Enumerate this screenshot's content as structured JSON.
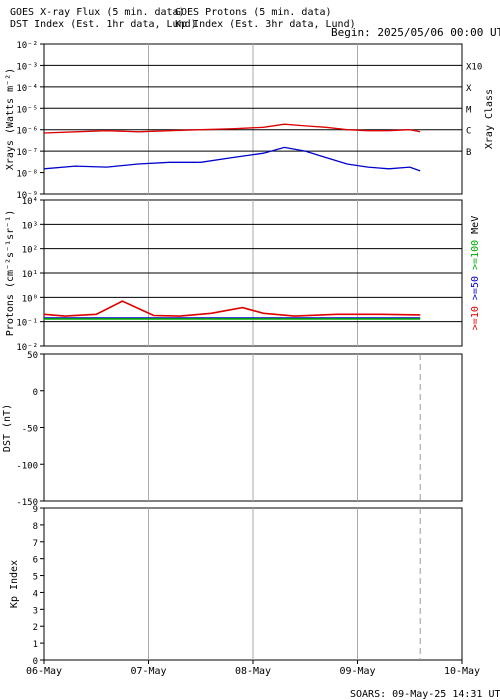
{
  "header": {
    "line1_left": "GOES X-ray Flux (5 min. data)",
    "line1_right": "GOES Protons (5 min. data)",
    "line2_left": "DST Index (Est. 1hr data, Lund)",
    "line2_right": "Kp Index (Est. 3hr data, Lund)",
    "begin": "Begin: 2025/05/06 00:00 UT"
  },
  "footer": {
    "credit": "SOARS: 09-May-25 14:31 UT"
  },
  "colors": {
    "xray_long": "#dd0000",
    "xray_short": "#0000cc",
    "proton_10": "#dd0000",
    "proton_50": "#0000cc",
    "proton_100": "#00aa00",
    "gridline": "#aaaaaa"
  },
  "chart_data": [
    {
      "type": "line",
      "panel": "xray",
      "ylabel": "Xrays (Watts m⁻²)",
      "yscale": "log",
      "ylim": [
        1e-09,
        0.01
      ],
      "yticks": [
        "10⁻⁹",
        "10⁻⁸",
        "10⁻⁷",
        "10⁻⁶",
        "10⁻⁵",
        "10⁻⁴",
        "10⁻³",
        "10⁻²"
      ],
      "right_label": "Xray Class",
      "classes": [
        {
          "label": "B",
          "level": 1e-07
        },
        {
          "label": "C",
          "level": 1e-06
        },
        {
          "label": "M",
          "level": 1e-05
        },
        {
          "label": "X",
          "level": 0.0001
        },
        {
          "label": "X10",
          "level": 0.001
        }
      ],
      "x_days": [
        0,
        3.6
      ],
      "series": [
        {
          "color": "#dd0000",
          "points": [
            [
              0,
              7e-07
            ],
            [
              0.3,
              8e-07
            ],
            [
              0.6,
              9e-07
            ],
            [
              0.9,
              8e-07
            ],
            [
              1.2,
              9e-07
            ],
            [
              1.5,
              1e-06
            ],
            [
              1.8,
              1.1e-06
            ],
            [
              2.1,
              1.3e-06
            ],
            [
              2.3,
              1.8e-06
            ],
            [
              2.5,
              1.5e-06
            ],
            [
              2.7,
              1.3e-06
            ],
            [
              2.9,
              1e-06
            ],
            [
              3.1,
              9e-07
            ],
            [
              3.3,
              9e-07
            ],
            [
              3.5,
              1e-06
            ],
            [
              3.6,
              8e-07
            ]
          ]
        },
        {
          "color": "#0000cc",
          "points": [
            [
              0,
              1.5e-08
            ],
            [
              0.3,
              2e-08
            ],
            [
              0.6,
              1.8e-08
            ],
            [
              0.9,
              2.5e-08
            ],
            [
              1.2,
              3e-08
            ],
            [
              1.5,
              3e-08
            ],
            [
              1.8,
              5e-08
            ],
            [
              2.1,
              8e-08
            ],
            [
              2.3,
              1.5e-07
            ],
            [
              2.5,
              1e-07
            ],
            [
              2.7,
              5e-08
            ],
            [
              2.9,
              2.5e-08
            ],
            [
              3.1,
              1.8e-08
            ],
            [
              3.3,
              1.5e-08
            ],
            [
              3.5,
              1.8e-08
            ],
            [
              3.6,
              1.2e-08
            ]
          ]
        }
      ]
    },
    {
      "type": "line",
      "panel": "protons",
      "ylabel": "Protons (cm⁻²s⁻¹sr⁻¹)",
      "yscale": "log",
      "ylim": [
        0.01,
        10000
      ],
      "yticks": [
        "10⁻²",
        "10⁻¹",
        "10⁰",
        "10¹",
        "10²",
        "10³",
        "10⁴"
      ],
      "threshold": 10,
      "right_labels": [
        {
          "text": ">=10",
          "color": "#dd0000"
        },
        {
          "text": ">=50",
          "color": "#0000cc"
        },
        {
          "text": ">=100",
          "color": "#00aa00"
        },
        {
          "text": "MeV",
          "color": "#000000"
        }
      ],
      "x_days": [
        0,
        3.6
      ],
      "series": [
        {
          "color": "#dd0000",
          "points": [
            [
              0,
              0.2
            ],
            [
              0.2,
              0.17
            ],
            [
              0.5,
              0.2
            ],
            [
              0.75,
              0.7
            ],
            [
              0.9,
              0.35
            ],
            [
              1.05,
              0.18
            ],
            [
              1.3,
              0.17
            ],
            [
              1.6,
              0.22
            ],
            [
              1.9,
              0.38
            ],
            [
              2.1,
              0.22
            ],
            [
              2.4,
              0.17
            ],
            [
              2.8,
              0.2
            ],
            [
              3.2,
              0.2
            ],
            [
              3.6,
              0.19
            ]
          ]
        },
        {
          "color": "#0000cc",
          "points": [
            [
              0,
              0.14
            ],
            [
              0.5,
              0.14
            ],
            [
              1.0,
              0.14
            ],
            [
              1.5,
              0.14
            ],
            [
              2.0,
              0.14
            ],
            [
              2.5,
              0.14
            ],
            [
              3.0,
              0.14
            ],
            [
              3.6,
              0.14
            ]
          ]
        },
        {
          "color": "#00aa00",
          "points": [
            [
              0,
              0.13
            ],
            [
              0.5,
              0.13
            ],
            [
              1.0,
              0.13
            ],
            [
              1.5,
              0.13
            ],
            [
              2.0,
              0.13
            ],
            [
              2.5,
              0.13
            ],
            [
              3.0,
              0.13
            ],
            [
              3.6,
              0.13
            ]
          ]
        }
      ]
    },
    {
      "type": "line",
      "panel": "dst",
      "ylabel": "DST (nT)",
      "ylim": [
        -150,
        50
      ],
      "yticks": [
        "50",
        "0",
        "-50",
        "-100",
        "-150"
      ],
      "series": []
    },
    {
      "type": "bar",
      "panel": "kp",
      "ylabel": "Kp Index",
      "ylim": [
        0,
        9
      ],
      "yticks": [
        "0",
        "1",
        "2",
        "3",
        "4",
        "5",
        "6",
        "7",
        "8",
        "9"
      ],
      "series": []
    }
  ],
  "x_axis": {
    "tick_labels": [
      "06-May",
      "07-May",
      "08-May",
      "09-May",
      "10-May"
    ],
    "current_time_day": 3.6
  }
}
